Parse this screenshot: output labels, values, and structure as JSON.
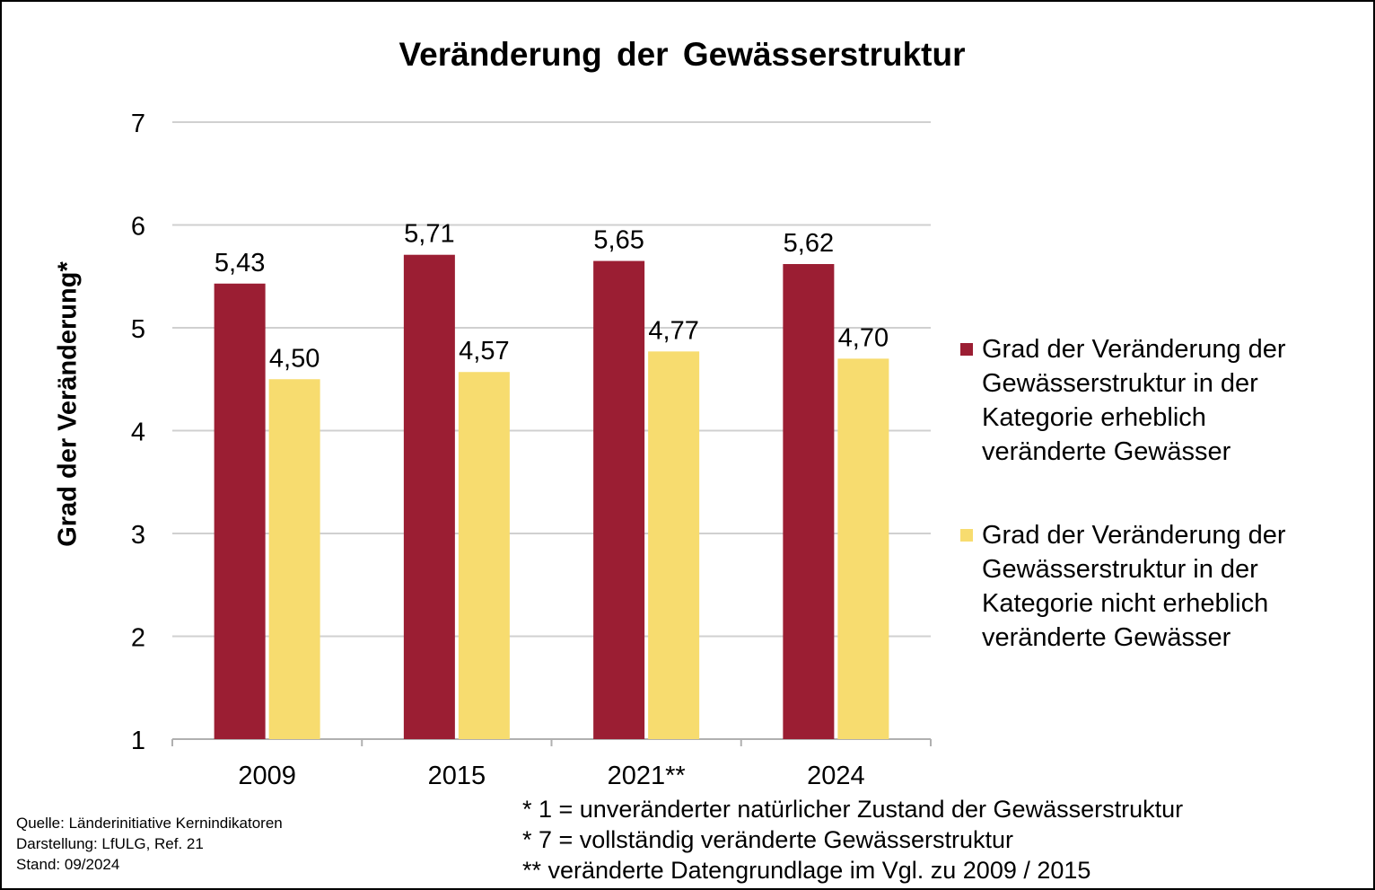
{
  "chart_data": {
    "type": "bar",
    "title": "Veränderung der Gewässerstruktur",
    "ylabel": "Grad der Veränderung*",
    "xlabel": "",
    "categories": [
      "2009",
      "2015",
      "2021**",
      "2024"
    ],
    "ylim": [
      1,
      7
    ],
    "yticks": [
      1,
      2,
      3,
      4,
      5,
      6,
      7
    ],
    "grid": true,
    "legend_position": "right",
    "series": [
      {
        "name": "Grad der Veränderung der Gewässerstruktur in der Kategorie erheblich veränderte Gewässer",
        "values": [
          5.43,
          5.71,
          5.65,
          5.62
        ],
        "labels": [
          "5,43",
          "5,71",
          "5,65",
          "5,62"
        ],
        "color": "#9b1e33"
      },
      {
        "name": "Grad der Veränderung der Gewässerstruktur in der Kategorie nicht erheblich veränderte Gewässer",
        "values": [
          4.5,
          4.57,
          4.77,
          4.7
        ],
        "labels": [
          "4,50",
          "4,57",
          "4,77",
          "4,70"
        ],
        "color": "#f7dc6f"
      }
    ]
  },
  "legend": {
    "items": [
      {
        "lines": [
          "Grad der Veränderung der",
          "Gewässerstruktur in der",
          "Kategorie erheblich",
          "veränderte Gewässer"
        ],
        "color": "#9b1e33"
      },
      {
        "lines": [
          "Grad der Veränderung der",
          "Gewässerstruktur in der",
          "Kategorie nicht erheblich",
          "veränderte Gewässer"
        ],
        "color": "#f7dc6f"
      }
    ]
  },
  "source": {
    "line1": "Quelle: Länderinitiative Kernindikatoren",
    "line2": "Darstellung: LfULG, Ref. 21",
    "line3": "Stand: 09/2024"
  },
  "notes": {
    "line1": "* 1 = unveränderter natürlicher Zustand der Gewässerstruktur",
    "line2": "* 7 = vollständig veränderte Gewässerstruktur",
    "line3": "** veränderte Datengrundlage im Vgl. zu 2009 / 2015"
  },
  "colors": {
    "grid": "#d0d0d0",
    "axis": "#b0b0b0"
  }
}
